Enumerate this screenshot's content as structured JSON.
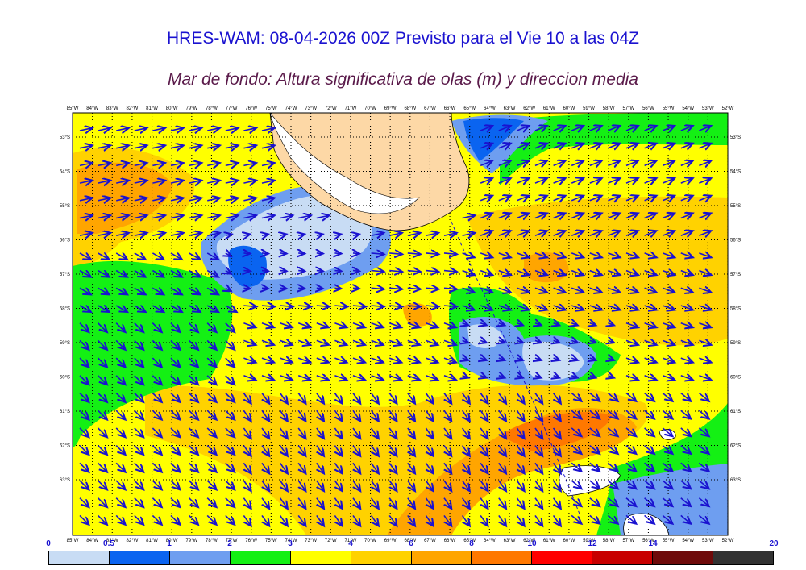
{
  "header": {
    "title": "HRES-WAM: 08-04-2026 00Z Previsto para el Vie 10 a las 04Z",
    "subtitle": "Mar de fondo: Altura significativa de olas (m) y direccion media"
  },
  "map": {
    "lon_labels": [
      "85°W",
      "84°W",
      "83°W",
      "82°W",
      "81°W",
      "80°W",
      "79°W",
      "78°W",
      "77°W",
      "76°W",
      "75°W",
      "74°W",
      "73°W",
      "72°W",
      "71°W",
      "70°W",
      "69°W",
      "68°W",
      "67°W",
      "66°W",
      "65°W",
      "64°W",
      "63°W",
      "62°W",
      "61°W",
      "60°W",
      "59°W",
      "58°W",
      "57°W",
      "56°W",
      "55°W",
      "54°W",
      "53°W",
      "52°W"
    ],
    "lat_labels": [
      "53°S",
      "54°S",
      "55°S",
      "56°S",
      "57°S",
      "58°S",
      "59°S",
      "60°S",
      "61°S",
      "62°S",
      "63°S"
    ],
    "colors": {
      "ocean_base": "#ffff00",
      "land": "#fdd8a6",
      "arrow": "#1a12d0",
      "coast": "#000000"
    }
  },
  "legend": {
    "labels": [
      "0",
      "0.5",
      "1",
      "2",
      "3",
      "4",
      "6",
      "8",
      "10",
      "12",
      "14",
      "20"
    ],
    "colors": [
      "#c8dcf4",
      "#0a64f0",
      "#6e9ef0",
      "#14f014",
      "#ffff00",
      "#ffd200",
      "#ffa500",
      "#ff7800",
      "#ff0000",
      "#c80000",
      "#6e0a0a",
      "#323232"
    ]
  }
}
